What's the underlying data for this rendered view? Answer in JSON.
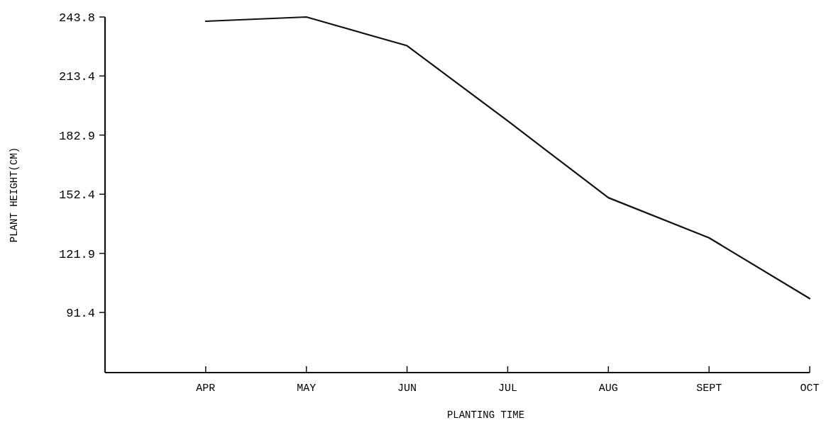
{
  "chart_data": {
    "type": "line",
    "xlabel": "PLANTING TIME",
    "ylabel": "PLANT HEIGHT(CM)",
    "categories": [
      "APR",
      "MAY",
      "JUN",
      "JUL",
      "AUG",
      "SEPT",
      "OCT"
    ],
    "series": [
      {
        "color": "#111111",
        "values": [
          241.6,
          243.8,
          229.0,
          190.2,
          150.6,
          129.9,
          98.6
        ]
      }
    ],
    "ylim": [
      60.4,
      243.8
    ],
    "yticks": [
      91.4,
      121.9,
      152.4,
      182.9,
      213.4,
      243.8
    ],
    "grid": false,
    "line_style": "solid"
  }
}
